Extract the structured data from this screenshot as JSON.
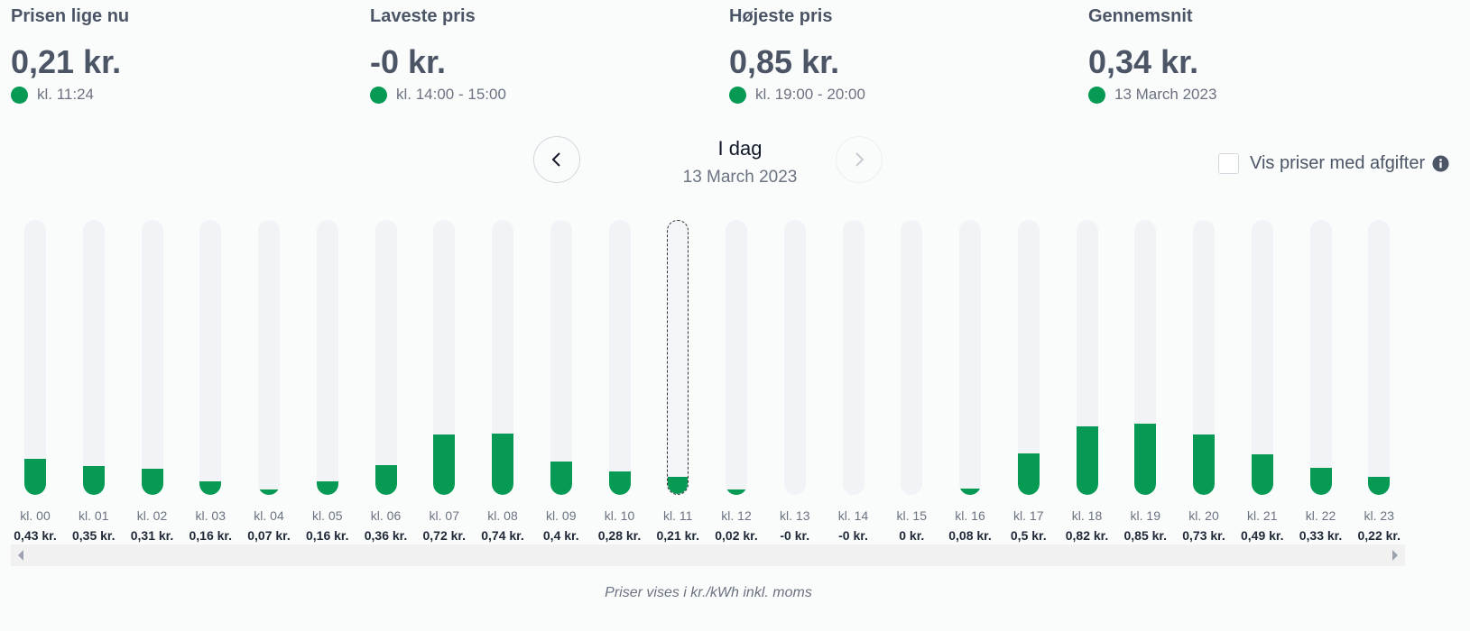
{
  "stats": [
    {
      "label": "Prisen lige nu",
      "value": "0,21 kr.",
      "sub": "kl. 11:24"
    },
    {
      "label": "Laveste pris",
      "value": "-0 kr.",
      "sub": "kl. 14:00 - 15:00"
    },
    {
      "label": "Højeste pris",
      "value": "0,85 kr.",
      "sub": "kl. 19:00 - 20:00"
    },
    {
      "label": "Gennemsnit",
      "value": "0,34 kr.",
      "sub": "13 March 2023"
    }
  ],
  "nav": {
    "day": "I dag",
    "date": "13 March 2023",
    "prev_icon": "chevron-left-icon",
    "next_icon": "chevron-right-icon"
  },
  "toggle": {
    "label": "Vis priser med afgifter",
    "checked": false,
    "icon": "info-icon"
  },
  "colors": {
    "accent": "#069a55",
    "track": "#f1f3f7",
    "text": "#4b5565"
  },
  "chart_data": {
    "type": "bar",
    "current_hour_index": 11,
    "ylim": [
      0,
      3.3
    ],
    "categories": [
      "kl. 00",
      "kl. 01",
      "kl. 02",
      "kl. 03",
      "kl. 04",
      "kl. 05",
      "kl. 06",
      "kl. 07",
      "kl. 08",
      "kl. 09",
      "kl. 10",
      "kl. 11",
      "kl. 12",
      "kl. 13",
      "kl. 14",
      "kl. 15",
      "kl. 16",
      "kl. 17",
      "kl. 18",
      "kl. 19",
      "kl. 20",
      "kl. 21",
      "kl. 22",
      "kl. 23"
    ],
    "values": [
      0.43,
      0.35,
      0.31,
      0.16,
      0.07,
      0.16,
      0.36,
      0.72,
      0.74,
      0.4,
      0.28,
      0.21,
      0.02,
      0,
      0,
      0,
      0.08,
      0.5,
      0.82,
      0.85,
      0.73,
      0.49,
      0.33,
      0.22
    ],
    "labels": [
      "0,43 kr.",
      "0,35 kr.",
      "0,31 kr.",
      "0,16 kr.",
      "0,07 kr.",
      "0,16 kr.",
      "0,36 kr.",
      "0,72 kr.",
      "0,74 kr.",
      "0,4 kr.",
      "0,28 kr.",
      "0,21 kr.",
      "0,02 kr.",
      "-0 kr.",
      "-0 kr.",
      "0 kr.",
      "0,08 kr.",
      "0,5 kr.",
      "0,82 kr.",
      "0,85 kr.",
      "0,73 kr.",
      "0,49 kr.",
      "0,33 kr.",
      "0,22 kr."
    ]
  },
  "footnote": "Priser vises i kr./kWh inkl. moms"
}
